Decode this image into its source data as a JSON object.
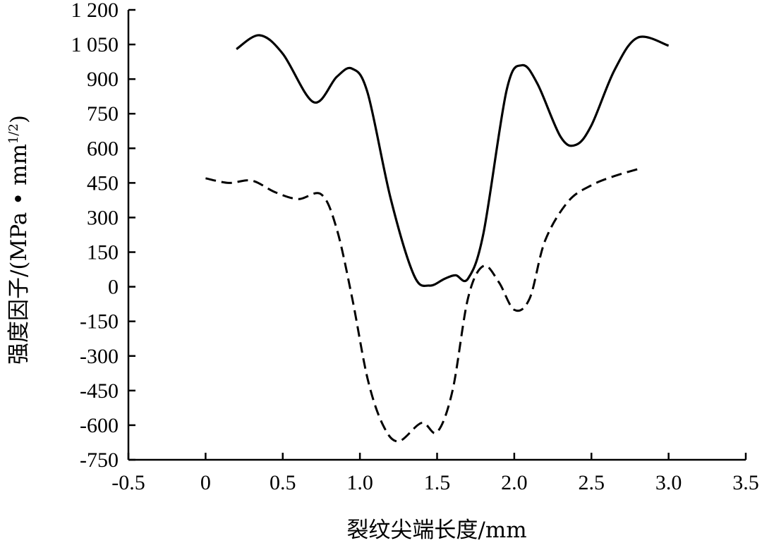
{
  "chart_data": {
    "type": "line",
    "xlabel": "裂纹尖端长度/mm",
    "ylabel": "强度因子/(MPa • mm",
    "ylabel_superscript": "1/2",
    "ylabel_close": ")",
    "xlim": [
      -0.5,
      3.5
    ],
    "ylim": [
      -750,
      1200
    ],
    "xticks": [
      -0.5,
      0,
      0.5,
      1.0,
      1.5,
      2.0,
      2.5,
      3.0,
      3.5
    ],
    "xtick_labels": [
      "-0.5",
      "0",
      "0.5",
      "1.0",
      "1.5",
      "2.0",
      "2.5",
      "3.0",
      "3.5"
    ],
    "yticks": [
      1200,
      1050,
      900,
      750,
      600,
      450,
      300,
      150,
      0,
      -150,
      -300,
      -450,
      -600,
      -750
    ],
    "ytick_labels": [
      "1 200",
      "1 050",
      "900",
      "750",
      "600",
      "450",
      "300",
      "150",
      "0",
      "-150",
      "-300",
      "-450",
      "-600",
      "-750"
    ],
    "grid": false,
    "series": [
      {
        "style": "solid",
        "color": "#000000",
        "x": [
          0.2,
          0.35,
          0.5,
          0.7,
          0.85,
          0.95,
          1.05,
          1.2,
          1.35,
          1.45,
          1.55,
          1.62,
          1.7,
          1.8,
          1.95,
          2.05,
          2.15,
          2.3,
          2.4,
          2.5,
          2.65,
          2.8,
          3.0
        ],
        "y": [
          1030,
          1090,
          1010,
          800,
          910,
          945,
          840,
          380,
          50,
          5,
          35,
          50,
          35,
          230,
          850,
          960,
          880,
          650,
          615,
          700,
          940,
          1080,
          1045
        ]
      },
      {
        "style": "dashed",
        "color": "#000000",
        "x": [
          0.0,
          0.15,
          0.3,
          0.45,
          0.6,
          0.75,
          0.85,
          0.95,
          1.05,
          1.15,
          1.25,
          1.4,
          1.5,
          1.6,
          1.7,
          1.8,
          1.9,
          2.0,
          2.1,
          2.2,
          2.35,
          2.5,
          2.65,
          2.8
        ],
        "y": [
          470,
          450,
          460,
          410,
          380,
          400,
          250,
          -50,
          -400,
          -600,
          -670,
          -590,
          -630,
          -450,
          -50,
          90,
          20,
          -100,
          -50,
          200,
          370,
          440,
          480,
          510
        ]
      }
    ]
  }
}
